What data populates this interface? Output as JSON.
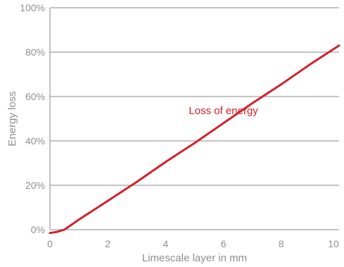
{
  "chart_data": {
    "type": "line",
    "title": "",
    "xlabel": "Limescale layer in mm",
    "ylabel": "Energy loss",
    "xlim": [
      0,
      10
    ],
    "ylim": [
      0,
      100
    ],
    "x_ticks": [
      "0",
      "2",
      "4",
      "6",
      "8",
      "10"
    ],
    "y_ticks": [
      "0%",
      "20%",
      "40%",
      "60%",
      "80%",
      "100%"
    ],
    "grid": "horizontal",
    "series": [
      {
        "name": "Loss of energy",
        "color": "#d0212a",
        "points": [
          {
            "x": 0,
            "y": -1.5
          },
          {
            "x": 0.25,
            "y": -1
          },
          {
            "x": 0.5,
            "y": 0
          },
          {
            "x": 1,
            "y": 4.5
          },
          {
            "x": 2,
            "y": 13
          },
          {
            "x": 3,
            "y": 21.5
          },
          {
            "x": 4,
            "y": 30.5
          },
          {
            "x": 5,
            "y": 39
          },
          {
            "x": 6,
            "y": 48
          },
          {
            "x": 7,
            "y": 57
          },
          {
            "x": 8,
            "y": 65.5
          },
          {
            "x": 9,
            "y": 74.5
          },
          {
            "x": 10,
            "y": 83
          }
        ]
      }
    ],
    "annotations": [
      {
        "text": "Loss of energy",
        "x": 6,
        "y": 52,
        "color": "#d0212a"
      }
    ]
  }
}
